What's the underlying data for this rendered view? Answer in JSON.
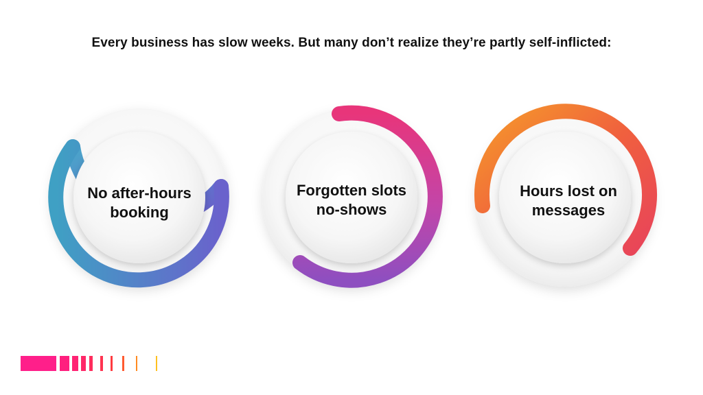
{
  "headline": "Every business has slow weeks. But many don’t realize they’re partly self-inflicted:",
  "items": [
    {
      "line1": "No after-hours",
      "line2": "booking",
      "color_start": "#4aa0c8",
      "color_end": "#6a5cc8"
    },
    {
      "line1": "Forgotten slots",
      "line2": "no-shows",
      "color_start": "#e8357a",
      "color_end": "#9b4fc2"
    },
    {
      "line1": "Hours lost on",
      "line2": "messages",
      "color_start": "#f7902a",
      "color_end": "#e8445a"
    }
  ],
  "accent_colors": [
    "#ff1f8a",
    "#ff2a5a",
    "#ff4a3a",
    "#ff8a20",
    "#ffc020"
  ]
}
